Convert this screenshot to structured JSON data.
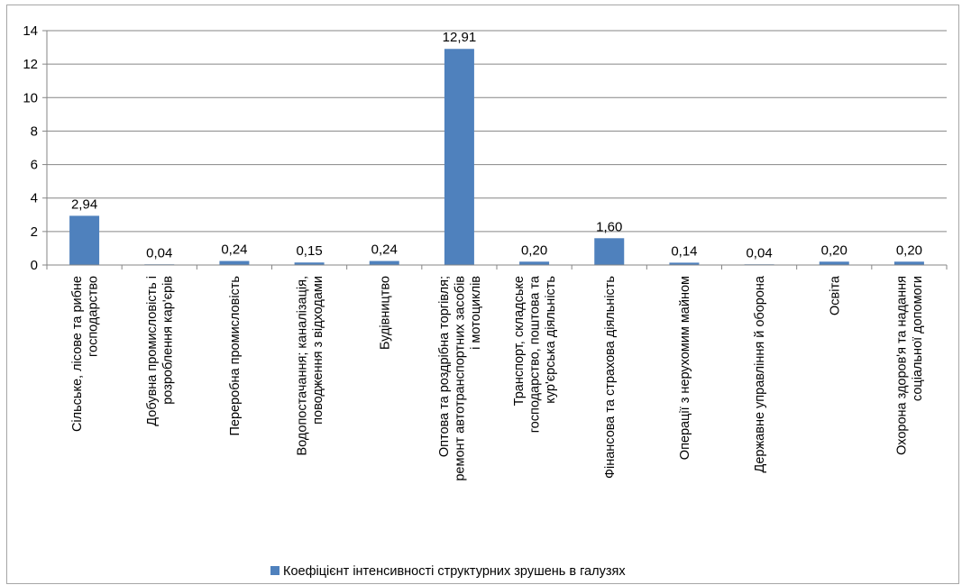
{
  "chart_data": {
    "type": "bar",
    "categories": [
      [
        "Сільське, лісове та рибне",
        "господарство"
      ],
      [
        "Добувна промисловість і",
        "розроблення кар'єрів"
      ],
      [
        "Переробна промисловість"
      ],
      [
        "Водопостачання; каналізація,",
        "поводження з відходами"
      ],
      [
        "Будівництво"
      ],
      [
        "Оптова та роздрібна торгівля;",
        "ремонт автотранспортних засобів",
        "і мотоциклів"
      ],
      [
        "Транспорт, складське",
        "господарство, поштова та",
        "кур'єрська діяльність"
      ],
      [
        "Фінансова та страхова діяльність"
      ],
      [
        "Операції з нерухомим майном"
      ],
      [
        "Державне управління й оборона"
      ],
      [
        "Освіта"
      ],
      [
        "Охорона здоров'я та надання",
        "соціальної допомоги"
      ]
    ],
    "series": [
      {
        "name": "Коефіцієнт інтенсивності структурних зрушень в галузях",
        "values": [
          2.94,
          0.04,
          0.24,
          0.15,
          0.24,
          12.91,
          0.2,
          1.6,
          0.14,
          0.04,
          0.2,
          0.2
        ],
        "labels": [
          "2,94",
          "0,04",
          "0,24",
          "0,15",
          "0,24",
          "12,91",
          "0,20",
          "1,60",
          "0,14",
          "0,04",
          "0,20",
          "0,20"
        ],
        "color": "#4f81bd"
      }
    ],
    "ylim": [
      0,
      14
    ],
    "yticks": [
      0,
      2,
      4,
      6,
      8,
      10,
      12,
      14
    ],
    "grid": true,
    "legend": "bottom",
    "gridline_color": "#868686"
  }
}
